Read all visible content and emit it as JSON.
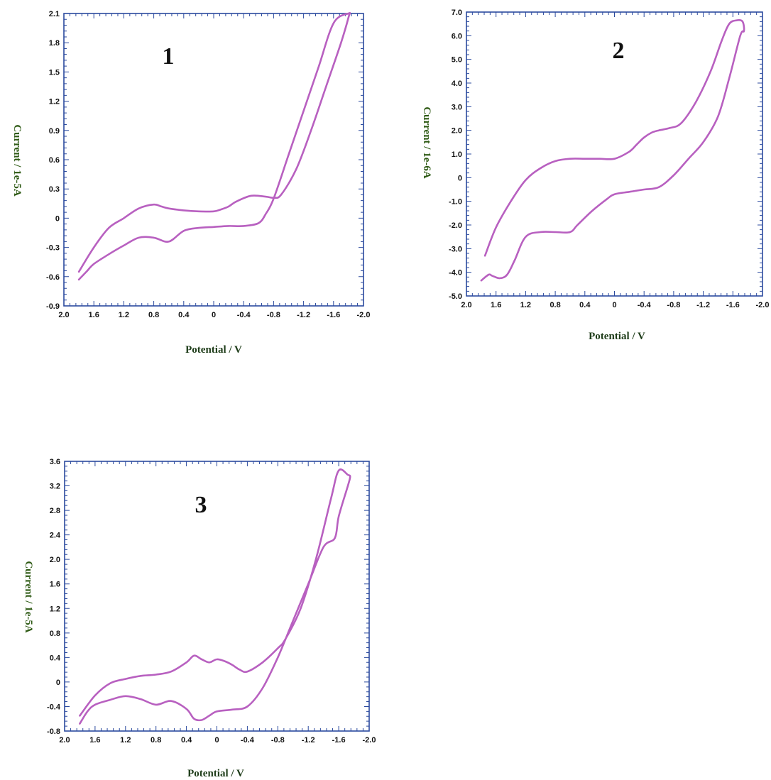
{
  "figure": {
    "frame_color": "#2b4a9e",
    "xlabel_color": "#1f3d1a",
    "ylabel_color": "#2e5a14",
    "curve_color": "#b860c0"
  },
  "chart_data": [
    {
      "type": "line",
      "panel_label": "1",
      "xlabel": "Potential / V",
      "ylabel": "Current / 1e-5A",
      "xlim": [
        2.0,
        -2.0
      ],
      "ylim": [
        -0.9,
        2.1
      ],
      "x_ticks": [
        "2.0",
        "1.6",
        "1.2",
        "0.8",
        "0.4",
        "0",
        "-0.4",
        "-0.8",
        "-1.2",
        "-1.6",
        "-2.0"
      ],
      "y_ticks": [
        "2.1",
        "1.8",
        "1.5",
        "1.2",
        "0.9",
        "0.6",
        "0.3",
        "0",
        "-0.3",
        "-0.6",
        "-0.9"
      ],
      "series": [
        {
          "x": [
            1.8,
            1.7,
            1.6,
            1.4,
            1.2,
            1.0,
            0.8,
            0.6,
            0.4,
            0.2,
            0.0,
            -0.2,
            -0.4,
            -0.6,
            -0.7,
            -0.8,
            -1.0,
            -1.2,
            -1.4,
            -1.6,
            -1.8,
            -1.8,
            -1.7,
            -1.5,
            -1.3,
            -1.1,
            -0.9,
            -0.8,
            -0.7,
            -0.5,
            -0.3,
            -0.2,
            -0.1,
            0.0,
            0.2,
            0.4,
            0.6,
            0.7,
            0.8,
            1.0,
            1.2,
            1.4,
            1.6,
            1.8
          ],
          "y": [
            -0.63,
            -0.55,
            -0.47,
            -0.37,
            -0.28,
            -0.2,
            -0.2,
            -0.24,
            -0.13,
            -0.1,
            -0.09,
            -0.08,
            -0.08,
            -0.05,
            0.05,
            0.2,
            0.65,
            1.1,
            1.55,
            2.0,
            2.1,
            2.06,
            1.8,
            1.35,
            0.9,
            0.5,
            0.24,
            0.21,
            0.22,
            0.23,
            0.17,
            0.12,
            0.09,
            0.07,
            0.07,
            0.08,
            0.1,
            0.12,
            0.14,
            0.1,
            0.0,
            -0.1,
            -0.3,
            -0.55
          ]
        }
      ]
    },
    {
      "type": "line",
      "panel_label": "2",
      "xlabel": "Potential / V",
      "ylabel": "Current / 1e-6A",
      "xlim": [
        2.0,
        -2.0
      ],
      "ylim": [
        -5.0,
        7.0
      ],
      "x_ticks": [
        "2.0",
        "1.6",
        "1.2",
        "0.8",
        "0.4",
        "0",
        "-0.4",
        "-0.8",
        "-1.2",
        "-1.6",
        "-2.0"
      ],
      "y_ticks": [
        "7.0",
        "6.0",
        "5.0",
        "4.0",
        "3.0",
        "2.0",
        "1.0",
        "0",
        "-1.0",
        "-2.0",
        "-3.0",
        "-4.0",
        "-5.0"
      ],
      "series": [
        {
          "x": [
            1.8,
            1.7,
            1.65,
            1.55,
            1.45,
            1.35,
            1.2,
            1.0,
            0.8,
            0.6,
            0.5,
            0.3,
            0.1,
            0.0,
            -0.2,
            -0.4,
            -0.6,
            -0.8,
            -1.0,
            -1.2,
            -1.4,
            -1.55,
            -1.7,
            -1.75,
            -1.73,
            -1.65,
            -1.55,
            -1.45,
            -1.3,
            -1.1,
            -0.9,
            -0.75,
            -0.6,
            -0.5,
            -0.4,
            -0.3,
            -0.2,
            0.0,
            0.2,
            0.4,
            0.6,
            0.8,
            1.0,
            1.2,
            1.4,
            1.6,
            1.75
          ],
          "y": [
            -4.35,
            -4.1,
            -4.15,
            -4.25,
            -4.1,
            -3.5,
            -2.5,
            -2.3,
            -2.3,
            -2.3,
            -2.0,
            -1.4,
            -0.9,
            -0.7,
            -0.6,
            -0.5,
            -0.4,
            0.1,
            0.8,
            1.5,
            2.6,
            4.2,
            6.0,
            6.2,
            6.6,
            6.65,
            6.5,
            5.8,
            4.5,
            3.2,
            2.3,
            2.1,
            2.0,
            1.9,
            1.7,
            1.4,
            1.1,
            0.8,
            0.8,
            0.8,
            0.8,
            0.7,
            0.4,
            -0.1,
            -1.0,
            -2.1,
            -3.3
          ]
        }
      ]
    },
    {
      "type": "line",
      "panel_label": "3",
      "xlabel": "Potential / V",
      "ylabel": "Current / 1e-5A",
      "xlim": [
        2.0,
        -2.0
      ],
      "ylim": [
        -0.8,
        3.6
      ],
      "x_ticks": [
        "2.0",
        "1.6",
        "1.2",
        "0.8",
        "0.4",
        "0",
        "-0.4",
        "-0.8",
        "-1.2",
        "-1.6",
        "-2.0"
      ],
      "y_ticks": [
        "3.6",
        "3.2",
        "2.8",
        "2.4",
        "2.0",
        "1.6",
        "1.2",
        "0.8",
        "0.4",
        "0",
        "-0.4",
        "-0.8"
      ],
      "series": [
        {
          "x": [
            1.8,
            1.7,
            1.6,
            1.4,
            1.2,
            1.0,
            0.8,
            0.6,
            0.4,
            0.3,
            0.2,
            0.1,
            0.0,
            -0.2,
            -0.4,
            -0.6,
            -0.8,
            -1.0,
            -1.2,
            -1.4,
            -1.55,
            -1.6,
            -1.72,
            -1.75,
            -1.72,
            -1.6,
            -1.5,
            -1.3,
            -1.1,
            -0.9,
            -0.8,
            -0.6,
            -0.4,
            -0.3,
            -0.2,
            -0.1,
            0.0,
            0.1,
            0.2,
            0.3,
            0.4,
            0.6,
            0.8,
            1.0,
            1.2,
            1.4,
            1.6,
            1.8
          ],
          "y": [
            -0.68,
            -0.48,
            -0.37,
            -0.29,
            -0.23,
            -0.28,
            -0.37,
            -0.31,
            -0.44,
            -0.6,
            -0.62,
            -0.55,
            -0.48,
            -0.45,
            -0.4,
            -0.1,
            0.4,
            1.0,
            1.6,
            2.2,
            2.35,
            2.7,
            3.2,
            3.35,
            3.38,
            3.45,
            3.0,
            2.0,
            1.2,
            0.7,
            0.55,
            0.32,
            0.17,
            0.2,
            0.28,
            0.34,
            0.37,
            0.32,
            0.37,
            0.43,
            0.32,
            0.17,
            0.12,
            0.1,
            0.05,
            -0.02,
            -0.22,
            -0.55
          ]
        }
      ]
    }
  ]
}
